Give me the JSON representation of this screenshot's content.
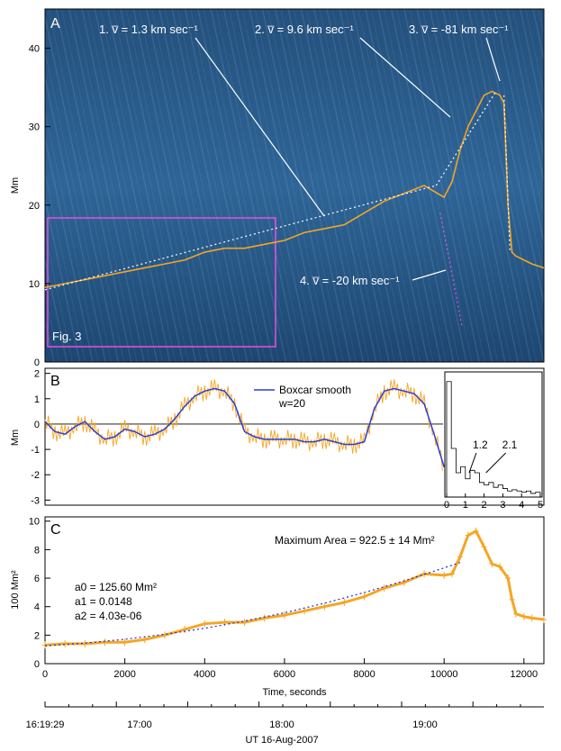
{
  "figure": {
    "colors": {
      "orange": "#f5a623",
      "blue_curve": "#2b3fd6",
      "magenta": "#e84fe6",
      "panel_bg": "#2c5f8f",
      "dotted_fit": "#1f2ad8"
    }
  },
  "chart_data": [
    {
      "panel": "A",
      "type": "line",
      "title": "",
      "ylabel": "Mm",
      "xlim": [
        0,
        12500
      ],
      "ylim": [
        0,
        45
      ],
      "yticks": [
        "0",
        "10",
        "20",
        "30",
        "40"
      ],
      "inset_label": "Fig. 3",
      "annotations": [
        {
          "id": "v1",
          "text": "1. v̅ = 1.3 km sec⁻¹",
          "slope_km_s": 1.3
        },
        {
          "id": "v2",
          "text": "2. v̅ = 9.6 km sec⁻¹",
          "slope_km_s": 9.6
        },
        {
          "id": "v3",
          "text": "3. v̅ = -81 km sec⁻¹",
          "slope_km_s": -81
        },
        {
          "id": "v4",
          "text": "4. v̅ = -20 km sec⁻¹",
          "slope_km_s": -20
        }
      ],
      "series": [
        {
          "name": "height track",
          "x": [
            0,
            500,
            1000,
            1500,
            2000,
            2500,
            3000,
            3500,
            4000,
            4500,
            5000,
            5500,
            6000,
            6500,
            7000,
            7500,
            8000,
            8500,
            9000,
            9500,
            10000,
            10200,
            10400,
            10600,
            10800,
            11000,
            11200,
            11400,
            11500,
            11600,
            11700,
            11800,
            12000,
            12200,
            12500
          ],
          "y": [
            9.5,
            10,
            10.5,
            11,
            11.5,
            12,
            12.5,
            13,
            14,
            14.5,
            14.5,
            15,
            15.5,
            16.5,
            17,
            17.5,
            19,
            20.5,
            21.5,
            22.5,
            21,
            23,
            27,
            30,
            32,
            34,
            34.5,
            34,
            33,
            20,
            14,
            13.5,
            13,
            12.5,
            12
          ]
        }
      ]
    },
    {
      "panel": "B",
      "type": "line",
      "ylabel": "Mm",
      "xlim": [
        0,
        12500
      ],
      "ylim": [
        -3.2,
        2.2
      ],
      "yticks": [
        "-3",
        "-2",
        "-1",
        "0",
        "1",
        "2"
      ],
      "legend": {
        "label": "Boxcar smooth",
        "sub": "w=20"
      },
      "series": [
        {
          "name": "Boxcar smooth w=20",
          "x": [
            0,
            250,
            500,
            750,
            1000,
            1250,
            1500,
            1750,
            2000,
            2250,
            2500,
            2750,
            3000,
            3250,
            3500,
            3750,
            4000,
            4250,
            4500,
            4750,
            5000,
            5250,
            5500,
            5750,
            6000,
            6250,
            6500,
            6750,
            7000,
            7250,
            7500,
            7750,
            8000,
            8250,
            8500,
            8750,
            9000,
            9250,
            9500,
            9750,
            10000
          ],
          "y": [
            0.1,
            -0.3,
            -0.4,
            -0.1,
            0.1,
            -0.3,
            -0.6,
            -0.5,
            -0.2,
            -0.3,
            -0.5,
            -0.4,
            -0.2,
            0.2,
            0.7,
            1.1,
            1.3,
            1.4,
            1.3,
            0.8,
            -0.3,
            -0.5,
            -0.6,
            -0.6,
            -0.6,
            -0.6,
            -0.7,
            -0.7,
            -0.6,
            -0.7,
            -0.8,
            -0.8,
            -0.7,
            0.6,
            1.3,
            1.4,
            1.3,
            1.2,
            0.8,
            -0.4,
            -1.7
          ]
        }
      ],
      "inset": {
        "type": "histogram",
        "xlim": [
          0,
          5
        ],
        "xticks": [
          "0",
          "1",
          "2",
          "3",
          "4",
          "5"
        ],
        "labels": [
          {
            "text": "1.2",
            "x": 1.2
          },
          {
            "text": "2.1",
            "x": 2.1
          }
        ],
        "bins_x": [
          0,
          0.25,
          0.5,
          0.75,
          1.0,
          1.25,
          1.5,
          1.75,
          2.0,
          2.25,
          2.5,
          2.75,
          3.0,
          3.25,
          3.5,
          3.75,
          4.0,
          4.25,
          4.5,
          4.75
        ],
        "bins_rel": [
          0.95,
          0.4,
          0.2,
          0.25,
          0.15,
          0.22,
          0.2,
          0.12,
          0.1,
          0.12,
          0.08,
          0.1,
          0.07,
          0.05,
          0.06,
          0.05,
          0.04,
          0.05,
          0.03,
          0.04
        ]
      }
    },
    {
      "panel": "C",
      "type": "line",
      "ylabel": "100 Mm²",
      "xlabel": "Time, seconds",
      "xlim": [
        0,
        12500
      ],
      "ylim": [
        0,
        10.3
      ],
      "xticks": [
        "0",
        "2000",
        "4000",
        "6000",
        "8000",
        "10000",
        "12000"
      ],
      "yticks": [
        "0",
        "2",
        "4",
        "6",
        "8",
        "10"
      ],
      "max_area_text": "Maximum Area = 922.5 ± 14 Mm²",
      "fit_params": [
        "a0 = 125.60 Mm²",
        "a1 = 0.0148",
        "a2 = 4.03e-06"
      ],
      "series": [
        {
          "name": "area",
          "x": [
            0,
            500,
            1000,
            1500,
            2000,
            2500,
            3000,
            3500,
            4000,
            4500,
            5000,
            5500,
            6000,
            6500,
            7000,
            7500,
            8000,
            8500,
            9000,
            9500,
            10000,
            10200,
            10400,
            10600,
            10800,
            11000,
            11200,
            11400,
            11600,
            11700,
            11800,
            12000,
            12200,
            12500
          ],
          "y": [
            1.3,
            1.4,
            1.4,
            1.5,
            1.5,
            1.7,
            2.0,
            2.4,
            2.8,
            2.9,
            2.9,
            3.2,
            3.4,
            3.7,
            4.0,
            4.3,
            4.7,
            5.3,
            5.7,
            6.3,
            6.2,
            6.3,
            7.5,
            9.0,
            9.3,
            8.2,
            7.0,
            6.8,
            6.0,
            4.5,
            3.5,
            3.3,
            3.2,
            3.1
          ]
        },
        {
          "name": "quadratic fit",
          "x": [
            0,
            1000,
            2000,
            3000,
            4000,
            5000,
            6000,
            7000,
            8000,
            9000,
            10000,
            10400
          ],
          "y": [
            1.256,
            1.44,
            1.71,
            2.06,
            2.48,
            2.99,
            3.57,
            4.24,
            4.99,
            5.81,
            6.72,
            7.1
          ]
        }
      ]
    }
  ],
  "time_axis": {
    "labels": [
      "16:19:29",
      "17:00",
      "18:00",
      "19:00"
    ],
    "caption": "UT 16-Aug-2007"
  },
  "panel_letters": [
    "A",
    "B",
    "C"
  ]
}
